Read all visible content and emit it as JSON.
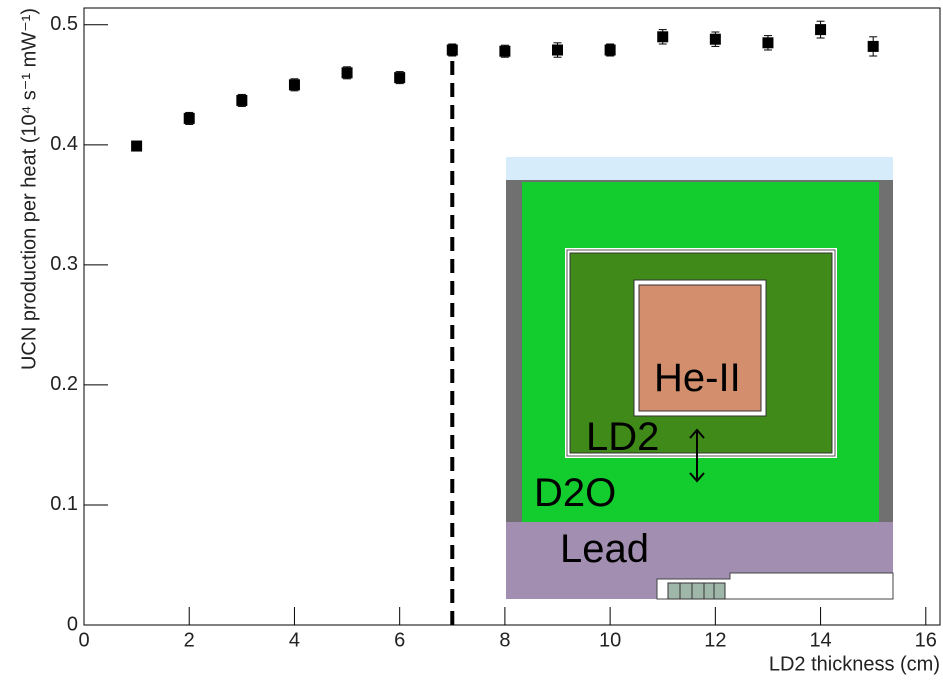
{
  "chart_data": {
    "type": "scatter",
    "x_label": "LD2 thickness (cm)",
    "y_label": "UCN production per heat (10⁴ s⁻¹ mW⁻¹)",
    "series": [
      {
        "x": [
          1,
          2,
          3,
          4,
          5,
          6,
          7,
          8,
          9,
          10,
          11,
          12,
          13,
          14,
          15
        ],
        "values": [
          0.399,
          0.422,
          0.437,
          0.45,
          0.46,
          0.456,
          0.479,
          0.478,
          0.479,
          0.479,
          0.49,
          0.488,
          0.485,
          0.496,
          0.482
        ],
        "errors": [
          0.004,
          0.005,
          0.005,
          0.005,
          0.005,
          0.005,
          0.005,
          0.005,
          0.006,
          0.005,
          0.006,
          0.006,
          0.006,
          0.007,
          0.008
        ],
        "color": "#000000"
      }
    ],
    "xlim": [
      0,
      16.27
    ],
    "ylim": [
      0,
      0.514
    ],
    "xticks": [
      0,
      2,
      4,
      6,
      8,
      10,
      12,
      14,
      16
    ],
    "yticks": [
      0,
      0.1,
      0.2,
      0.3,
      0.4,
      0.5
    ],
    "reference_line": {
      "x": 7,
      "y": [
        0,
        0.483
      ]
    },
    "inset_labels": [
      "He-II",
      "LD2",
      "D2O",
      "Lead"
    ]
  }
}
